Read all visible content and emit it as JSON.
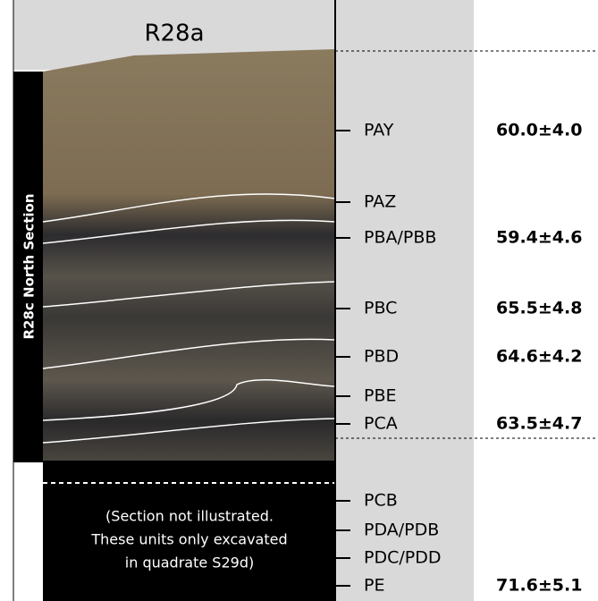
{
  "header": {
    "title": "R28a"
  },
  "side_label": "R28c North Section",
  "note": [
    "(Section not illustrated.",
    "These units only excavated",
    "in quadrate S29d)"
  ],
  "units": [
    {
      "label": "PAY",
      "age": "60.0±4.0"
    },
    {
      "label": "PAZ"
    },
    {
      "label": "PBA/PBB",
      "age": "59.4±4.6"
    },
    {
      "label": "PBC",
      "age": "65.5±4.8"
    },
    {
      "label": "PBD",
      "age": "64.6±4.2"
    },
    {
      "label": "PBE"
    },
    {
      "label": "PCA",
      "age": "63.5±4.7"
    },
    {
      "label": "PCB"
    },
    {
      "label": "PDA/PDB"
    },
    {
      "label": "PDC/PDD"
    },
    {
      "label": "PE",
      "age": "71.6±5.1"
    }
  ]
}
